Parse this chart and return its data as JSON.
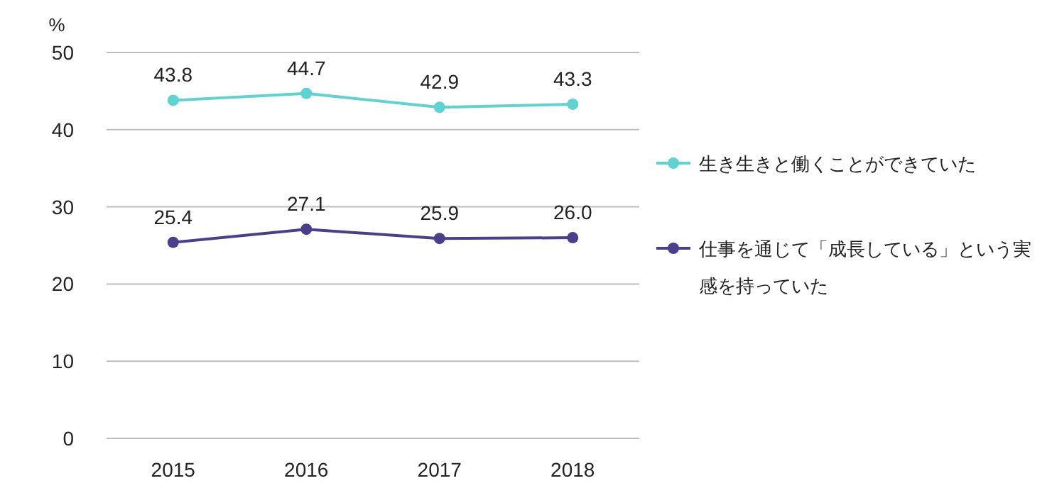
{
  "chart_data": {
    "type": "line",
    "ylabel": "%",
    "categories": [
      "2015",
      "2016",
      "2017",
      "2018"
    ],
    "series": [
      {
        "name": "生き生きと働くことができていた",
        "color": "#5fd3cf",
        "values": [
          43.8,
          44.7,
          42.9,
          43.3
        ],
        "value_labels": [
          "43.8",
          "44.7",
          "42.9",
          "43.3"
        ]
      },
      {
        "name": "仕事を通じて「成長している」という実感を持っていた",
        "color": "#4a3f8a",
        "values": [
          25.4,
          27.1,
          25.9,
          26.0
        ],
        "value_labels": [
          "25.4",
          "27.1",
          "25.9",
          "26.0"
        ]
      }
    ],
    "ylim": [
      0,
      50
    ],
    "yticks": [
      0,
      10,
      20,
      30,
      40,
      50
    ],
    "grid": "y",
    "legend": "right",
    "marker": "circle",
    "line_style": "solid"
  }
}
